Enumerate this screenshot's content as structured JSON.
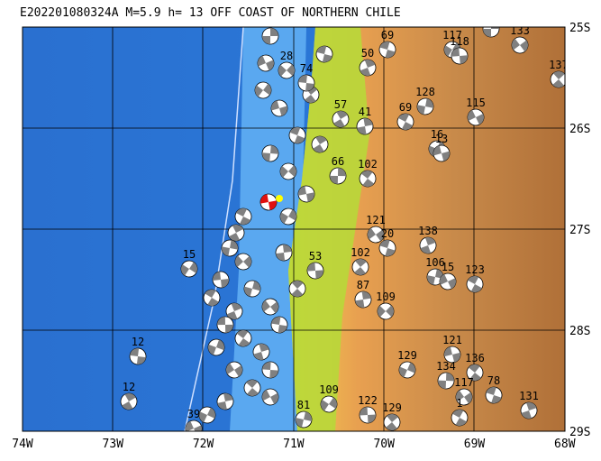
{
  "header": {
    "title": "E202201080324A  M=5.9  h= 13  OFF COAST OF NORTHERN CHILE"
  },
  "axes": {
    "lon_labels": [
      "74W",
      "73W",
      "72W",
      "71W",
      "70W",
      "69W",
      "68W"
    ],
    "lat_labels": [
      "25S",
      "26S",
      "27S",
      "28S",
      "29S"
    ]
  },
  "events": [
    {
      "depth": "117"
    },
    {
      "depth": "133"
    },
    {
      "depth": "69"
    },
    {
      "depth": "50"
    },
    {
      "depth": "117"
    },
    {
      "depth": "118"
    },
    {
      "depth": "137"
    },
    {
      "depth": "128"
    },
    {
      "depth": "115"
    },
    {
      "depth": "69"
    },
    {
      "depth": "41"
    },
    {
      "depth": "28"
    },
    {
      "depth": "74"
    },
    {
      "depth": "57"
    },
    {
      "depth": "16"
    },
    {
      "depth": "13"
    },
    {
      "depth": "102"
    },
    {
      "depth": "66"
    },
    {
      "depth": "121"
    },
    {
      "depth": "20"
    },
    {
      "depth": "138"
    },
    {
      "depth": "15"
    },
    {
      "depth": "53"
    },
    {
      "depth": "102"
    },
    {
      "depth": "106"
    },
    {
      "depth": "15"
    },
    {
      "depth": "123"
    },
    {
      "depth": "87"
    },
    {
      "depth": "109"
    },
    {
      "depth": "12"
    },
    {
      "depth": "12"
    },
    {
      "depth": "129"
    },
    {
      "depth": "121"
    },
    {
      "depth": "136"
    },
    {
      "depth": "134"
    },
    {
      "depth": "117"
    },
    {
      "depth": "78"
    },
    {
      "depth": "131"
    },
    {
      "depth": "109"
    },
    {
      "depth": "122"
    },
    {
      "depth": "129"
    },
    {
      "depth": "81"
    },
    {
      "depth": "39"
    },
    {
      "depth": "1"
    }
  ]
}
